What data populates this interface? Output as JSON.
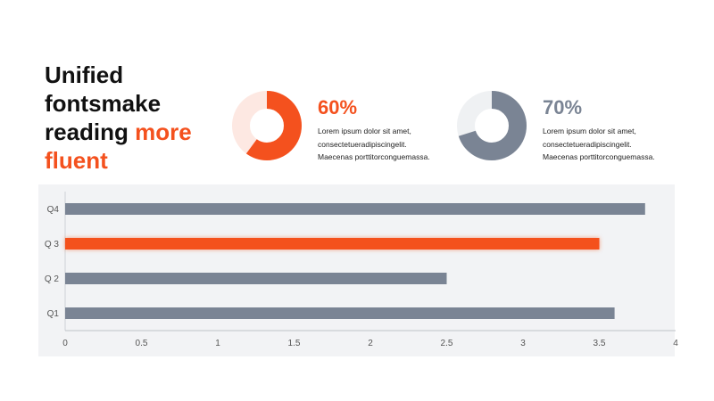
{
  "title": {
    "line1": "Unified",
    "line2": "fontsmake",
    "line3_plain": "reading",
    "line3_accent": "more",
    "line4_accent": "fluent"
  },
  "colors": {
    "accent": "#f4511e",
    "accent_light": "#fde8e2",
    "neutral": "#7a8494",
    "neutral_light": "#eff1f3",
    "panel": "#f2f3f5"
  },
  "stats": [
    {
      "value": "60%",
      "percent": 60,
      "lines": [
        "Lorem ipsum  dolor sit amet,",
        "consectetueradipiscingelit.",
        "Maecenas porttitorconguemassa."
      ],
      "color": "#f4511e",
      "track": "#fde8e2"
    },
    {
      "value": "70%",
      "percent": 70,
      "lines": [
        "Lorem ipsum  dolor sit amet,",
        "consectetueradipiscingelit.",
        "Maecenas porttitorconguemassa."
      ],
      "color": "#7a8494",
      "track": "#eff1f3"
    }
  ],
  "chart_data": {
    "type": "bar",
    "orientation": "horizontal",
    "categories": [
      "Q1",
      "Q 2",
      "Q 3",
      "Q4"
    ],
    "values": [
      3.6,
      2.5,
      3.5,
      3.8
    ],
    "highlight_category": "Q 3",
    "bar_color": "#7a8494",
    "highlight_color": "#f4511e",
    "xlim": [
      0,
      4
    ],
    "xticks": [
      0,
      0.5,
      1,
      1.5,
      2,
      2.5,
      3,
      3.5,
      4
    ],
    "grid": false,
    "legend": "none"
  }
}
